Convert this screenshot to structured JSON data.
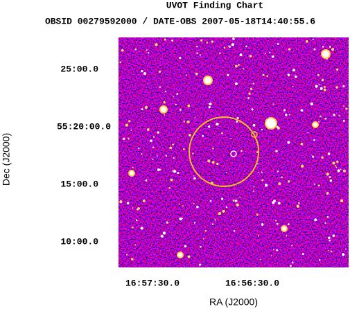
{
  "title": "UVOT Finding Chart",
  "subtitle": "OBSID 00279592000 / DATE-OBS 2007-05-18T14:40:55.6",
  "x_axis": {
    "label": "RA (J2000)",
    "ticks": [
      "16:57:30.0",
      "16:56:30.0"
    ]
  },
  "y_axis": {
    "label": "Dec (J2000)",
    "ticks": [
      "25:00.0",
      "55:20:00.0",
      "15:00.0",
      "10:00.0"
    ]
  }
}
